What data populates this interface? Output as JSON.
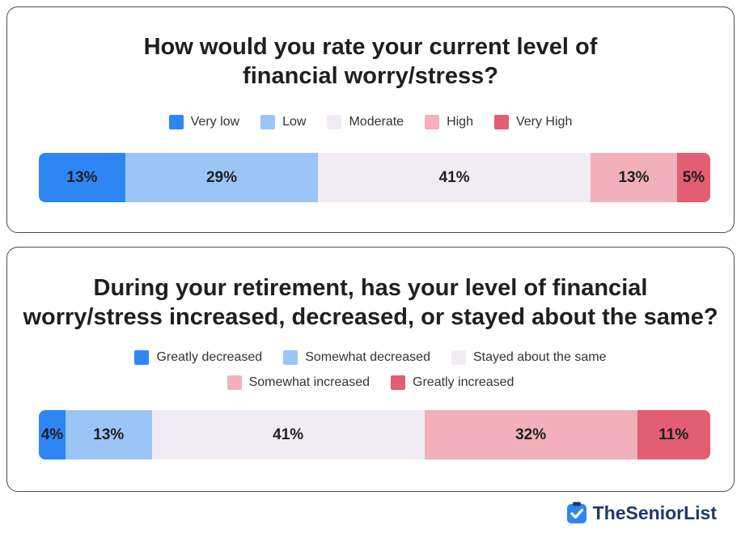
{
  "colors": {
    "c1": "#2e86f5",
    "c2": "#9cc5f7",
    "c3": "#f1ecf3",
    "c4": "#f1b0ba",
    "c5": "#e35d73"
  },
  "chart_data": [
    {
      "type": "bar",
      "orientation": "horizontal-stacked",
      "title": "How would you rate your current level of\nfinancial worry/stress?",
      "categories": [
        "Very low",
        "Low",
        "Moderate",
        "High",
        "Very High"
      ],
      "values": [
        13,
        29,
        41,
        13,
        5
      ],
      "labels": [
        "13%",
        "29%",
        "41%",
        "13%",
        "5%"
      ],
      "unit": "%",
      "legend_position": "top"
    },
    {
      "type": "bar",
      "orientation": "horizontal-stacked",
      "title": "During your retirement, has your level of financial\nworry/stress increased, decreased, or stayed about the same?",
      "categories": [
        "Greatly decreased",
        "Somewhat decreased",
        "Stayed about the same",
        "Somewhat increased",
        "Greatly increased"
      ],
      "values": [
        4,
        13,
        41,
        32,
        11
      ],
      "labels": [
        "4%",
        "13%",
        "41%",
        "32%",
        "11%"
      ],
      "unit": "%",
      "legend_position": "top"
    }
  ],
  "brand": {
    "name": "TheSeniorList",
    "icon": "checkmark-clipboard-icon"
  }
}
